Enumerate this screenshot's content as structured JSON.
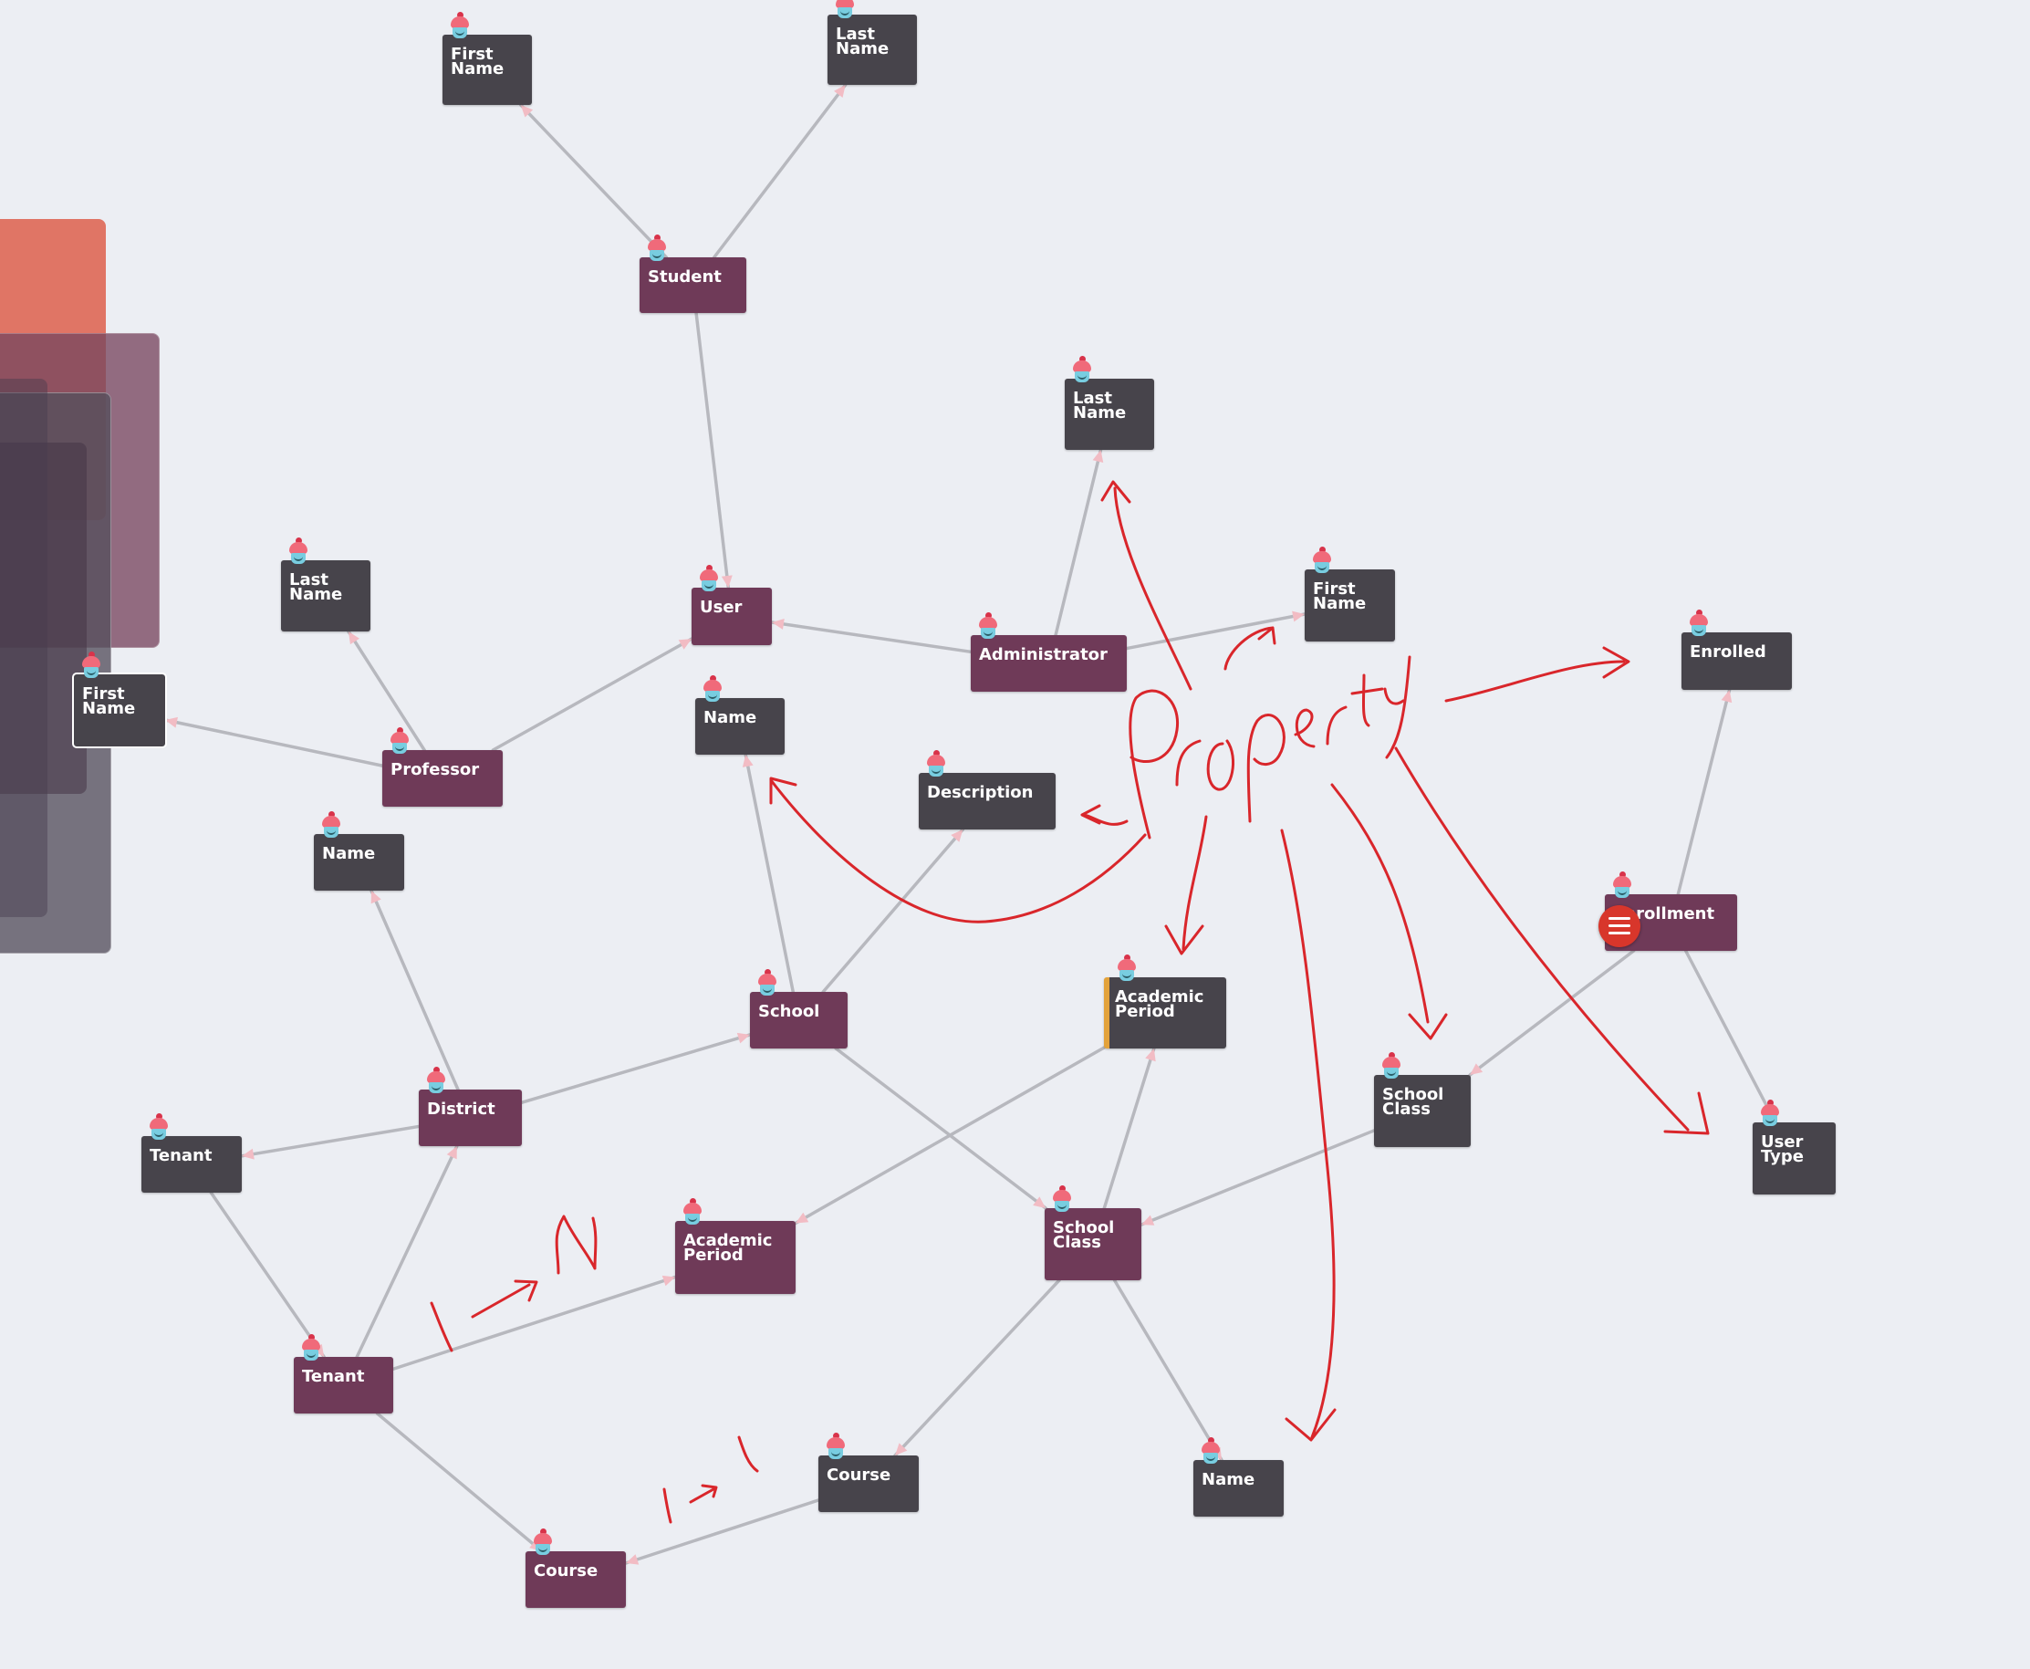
{
  "diagram": {
    "nodes": [
      {
        "id": "fn_top",
        "label": "First Name",
        "kind": "prop"
      },
      {
        "id": "ln_top",
        "label": "Last Name",
        "kind": "prop"
      },
      {
        "id": "student",
        "label": "Student",
        "kind": "entity"
      },
      {
        "id": "ln_admin",
        "label": "Last Name",
        "kind": "prop"
      },
      {
        "id": "ln_prof",
        "label": "Last Name",
        "kind": "prop"
      },
      {
        "id": "user",
        "label": "User",
        "kind": "entity"
      },
      {
        "id": "administrator",
        "label": "Administrator",
        "kind": "entity"
      },
      {
        "id": "fn_admin",
        "label": "First Name",
        "kind": "prop"
      },
      {
        "id": "enrolled",
        "label": "Enrolled",
        "kind": "prop"
      },
      {
        "id": "fn_prof",
        "label": "First Name",
        "kind": "prop"
      },
      {
        "id": "name_school",
        "label": "Name",
        "kind": "prop"
      },
      {
        "id": "description",
        "label": "Description",
        "kind": "prop"
      },
      {
        "id": "professor",
        "label": "Professor",
        "kind": "entity"
      },
      {
        "id": "name_district",
        "label": "Name",
        "kind": "prop"
      },
      {
        "id": "enrollment",
        "label": "Enrollment",
        "kind": "entity"
      },
      {
        "id": "school",
        "label": "School",
        "kind": "entity"
      },
      {
        "id": "ap_prop",
        "label": "Academic Period",
        "kind": "prop"
      },
      {
        "id": "district",
        "label": "District",
        "kind": "entity"
      },
      {
        "id": "sc_prop",
        "label": "School Class",
        "kind": "prop"
      },
      {
        "id": "user_type",
        "label": "User Type",
        "kind": "prop"
      },
      {
        "id": "tenant_prop",
        "label": "Tenant",
        "kind": "prop"
      },
      {
        "id": "ap_entity",
        "label": "Academic Period",
        "kind": "entity"
      },
      {
        "id": "sc_entity",
        "label": "School Class",
        "kind": "entity"
      },
      {
        "id": "tenant",
        "label": "Tenant",
        "kind": "entity"
      },
      {
        "id": "course_prop",
        "label": "Course",
        "kind": "prop"
      },
      {
        "id": "name_sc",
        "label": "Name",
        "kind": "prop"
      },
      {
        "id": "course",
        "label": "Course",
        "kind": "entity"
      }
    ],
    "edges": [
      {
        "from": "student",
        "to": "fn_top"
      },
      {
        "from": "student",
        "to": "ln_top"
      },
      {
        "from": "student",
        "to": "user"
      },
      {
        "from": "administrator",
        "to": "user"
      },
      {
        "from": "administrator",
        "to": "ln_admin"
      },
      {
        "from": "administrator",
        "to": "fn_admin"
      },
      {
        "from": "professor",
        "to": "user"
      },
      {
        "from": "professor",
        "to": "ln_prof"
      },
      {
        "from": "professor",
        "to": "fn_prof"
      },
      {
        "from": "school",
        "to": "name_school"
      },
      {
        "from": "school",
        "to": "description"
      },
      {
        "from": "school",
        "to": "sc_entity"
      },
      {
        "from": "district",
        "to": "name_district"
      },
      {
        "from": "district",
        "to": "school"
      },
      {
        "from": "district",
        "to": "tenant_prop"
      },
      {
        "from": "tenant_prop",
        "to": "tenant"
      },
      {
        "from": "tenant",
        "to": "district"
      },
      {
        "from": "tenant",
        "to": "ap_entity"
      },
      {
        "from": "tenant",
        "to": "course"
      },
      {
        "from": "ap_prop",
        "to": "ap_entity"
      },
      {
        "from": "sc_entity",
        "to": "ap_prop"
      },
      {
        "from": "sc_entity",
        "to": "course_prop"
      },
      {
        "from": "sc_entity",
        "to": "name_sc"
      },
      {
        "from": "sc_prop",
        "to": "sc_entity"
      },
      {
        "from": "enrollment",
        "to": "enrolled"
      },
      {
        "from": "enrollment",
        "to": "sc_prop"
      },
      {
        "from": "enrollment",
        "to": "user_type"
      },
      {
        "from": "course_prop",
        "to": "course"
      }
    ],
    "annotations": {
      "property": "Property",
      "one_to_n": "1 → N",
      "one_to_one": "1 → 1"
    },
    "colors": {
      "entity": "#6f3a58",
      "property": "#47444b",
      "edge": "#b7b8be",
      "arrowhead": "#f2bcc4",
      "ink": "#d9262b",
      "background": "#eceef3"
    }
  },
  "toolbar": {
    "menu_icon": "menu-icon"
  }
}
